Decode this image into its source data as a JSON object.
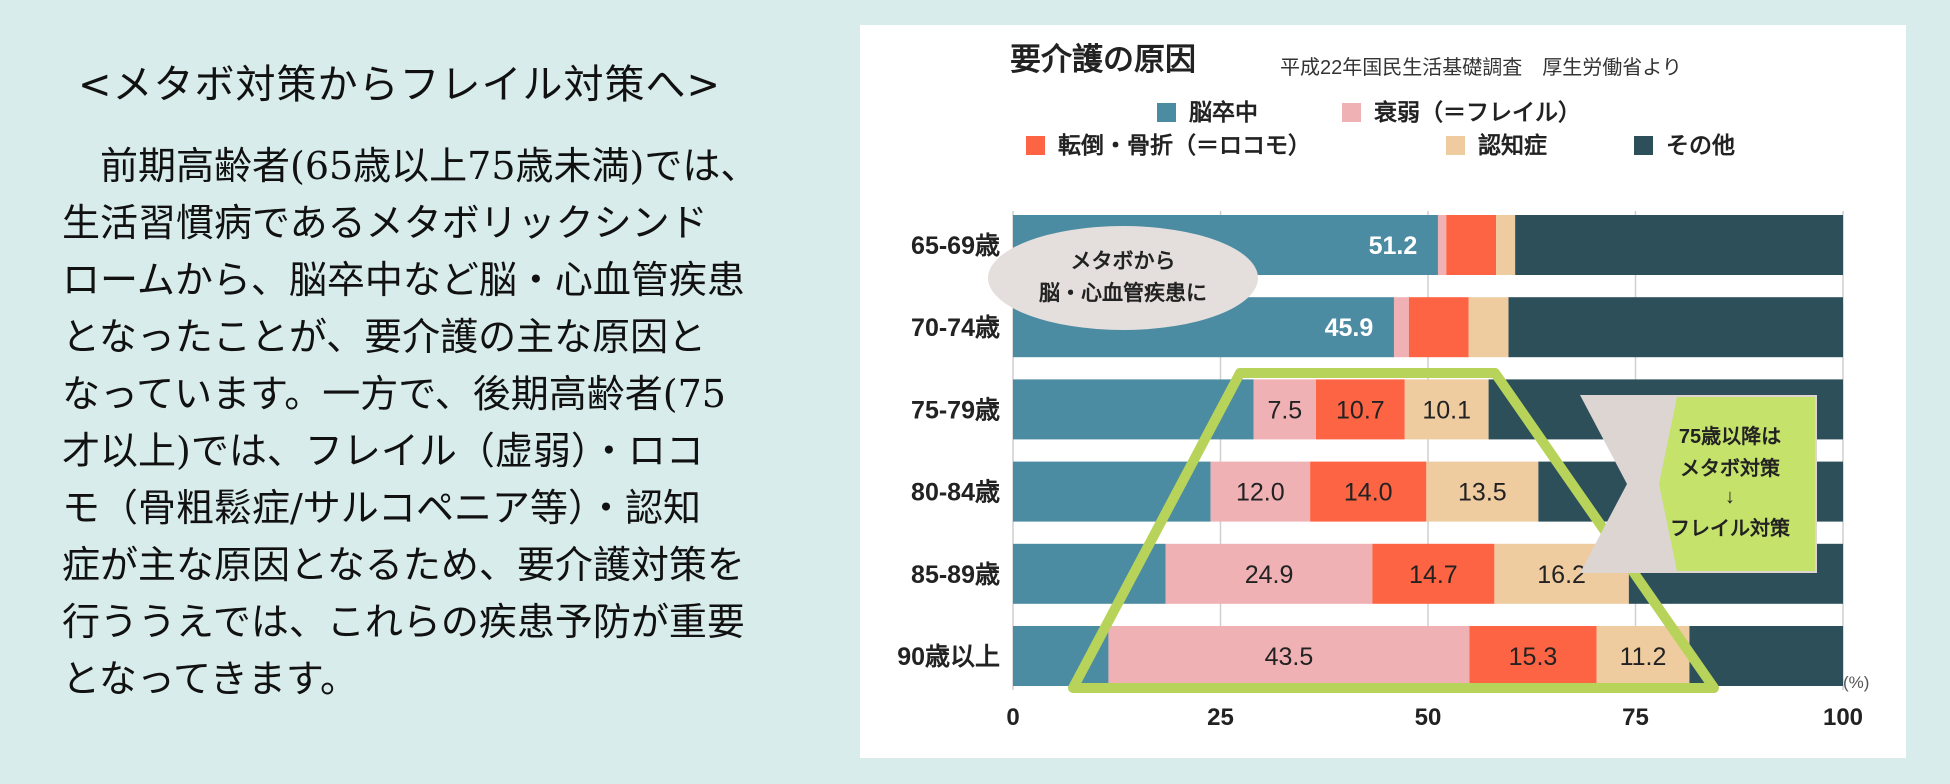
{
  "left_panel": {
    "heading": "<メタボ対策からフレイル対策へ>",
    "body_lines": [
      "　前期高齢者(65歳以上75歳未満)では、",
      "生活習慣病であるメタボリックシンド",
      "ロームから、脳卒中など脳・心血管疾患",
      "となったことが、要介護の主な原因と",
      "なっています。一方で、後期高齢者(75",
      "才以上)では、フレイル（虚弱）・ロコ",
      "モ（骨粗鬆症/サルコペニア等）・認知",
      "症が主な原因となるため、要介護対策を",
      "行ううえでは、これらの疾患予防が重要",
      "となってきます。"
    ]
  },
  "chart_data": {
    "type": "bar",
    "orientation": "horizontal",
    "stacked": true,
    "title": "要介護の原因",
    "subtitle": "平成22年国民生活基礎調査　厚生労働省より",
    "categories": [
      "65-69歳",
      "70-74歳",
      "75-79歳",
      "80-84歳",
      "85-89歳",
      "90歳以上"
    ],
    "series": [
      {
        "name": "脳卒中",
        "color": "#4c8ca3",
        "values": [
          51.2,
          45.9,
          29.0,
          23.8,
          18.4,
          11.5
        ],
        "labels": [
          "51.2",
          "45.9",
          "",
          "",
          "",
          ""
        ]
      },
      {
        "name": "衰弱（＝フレイル）",
        "color": "#efb1b4",
        "values": [
          1.0,
          1.8,
          7.5,
          12.0,
          24.9,
          43.5
        ],
        "labels": [
          "",
          "",
          "7.5",
          "12.0",
          "24.9",
          "43.5"
        ]
      },
      {
        "name": "転倒・骨折（＝ロコモ）",
        "color": "#fd6443",
        "values": [
          6.0,
          7.2,
          10.7,
          14.0,
          14.7,
          15.3
        ],
        "labels": [
          "",
          "",
          "10.7",
          "14.0",
          "14.7",
          "15.3"
        ]
      },
      {
        "name": "認知症",
        "color": "#efcba0",
        "values": [
          2.3,
          4.8,
          10.1,
          13.5,
          16.2,
          11.2
        ],
        "labels": [
          "",
          "",
          "10.1",
          "13.5",
          "16.2",
          "11.2"
        ]
      },
      {
        "name": "その他",
        "color": "#2d4f59",
        "values": [
          39.5,
          40.3,
          42.7,
          36.7,
          25.8,
          18.5
        ],
        "labels": [
          "",
          "",
          "",
          "",
          "",
          ""
        ]
      }
    ],
    "xlim": [
      0,
      100
    ],
    "xticks": [
      "0",
      "25",
      "50",
      "75",
      "100"
    ],
    "unit_label": "(%)",
    "grid": true,
    "legend_position": "top",
    "annotations": {
      "ellipse_text": [
        "メタボから",
        "脳・心血管疾患に"
      ],
      "arrow_text": [
        "75歳以降は",
        "メタボ対策",
        "↓",
        "フレイル対策"
      ],
      "highlight_color": "#b8d35a",
      "ellipse_color": "#e4dfdc",
      "arrow_outer_color": "#dcd5d2",
      "arrow_inner_color": "#c5e26a"
    }
  }
}
